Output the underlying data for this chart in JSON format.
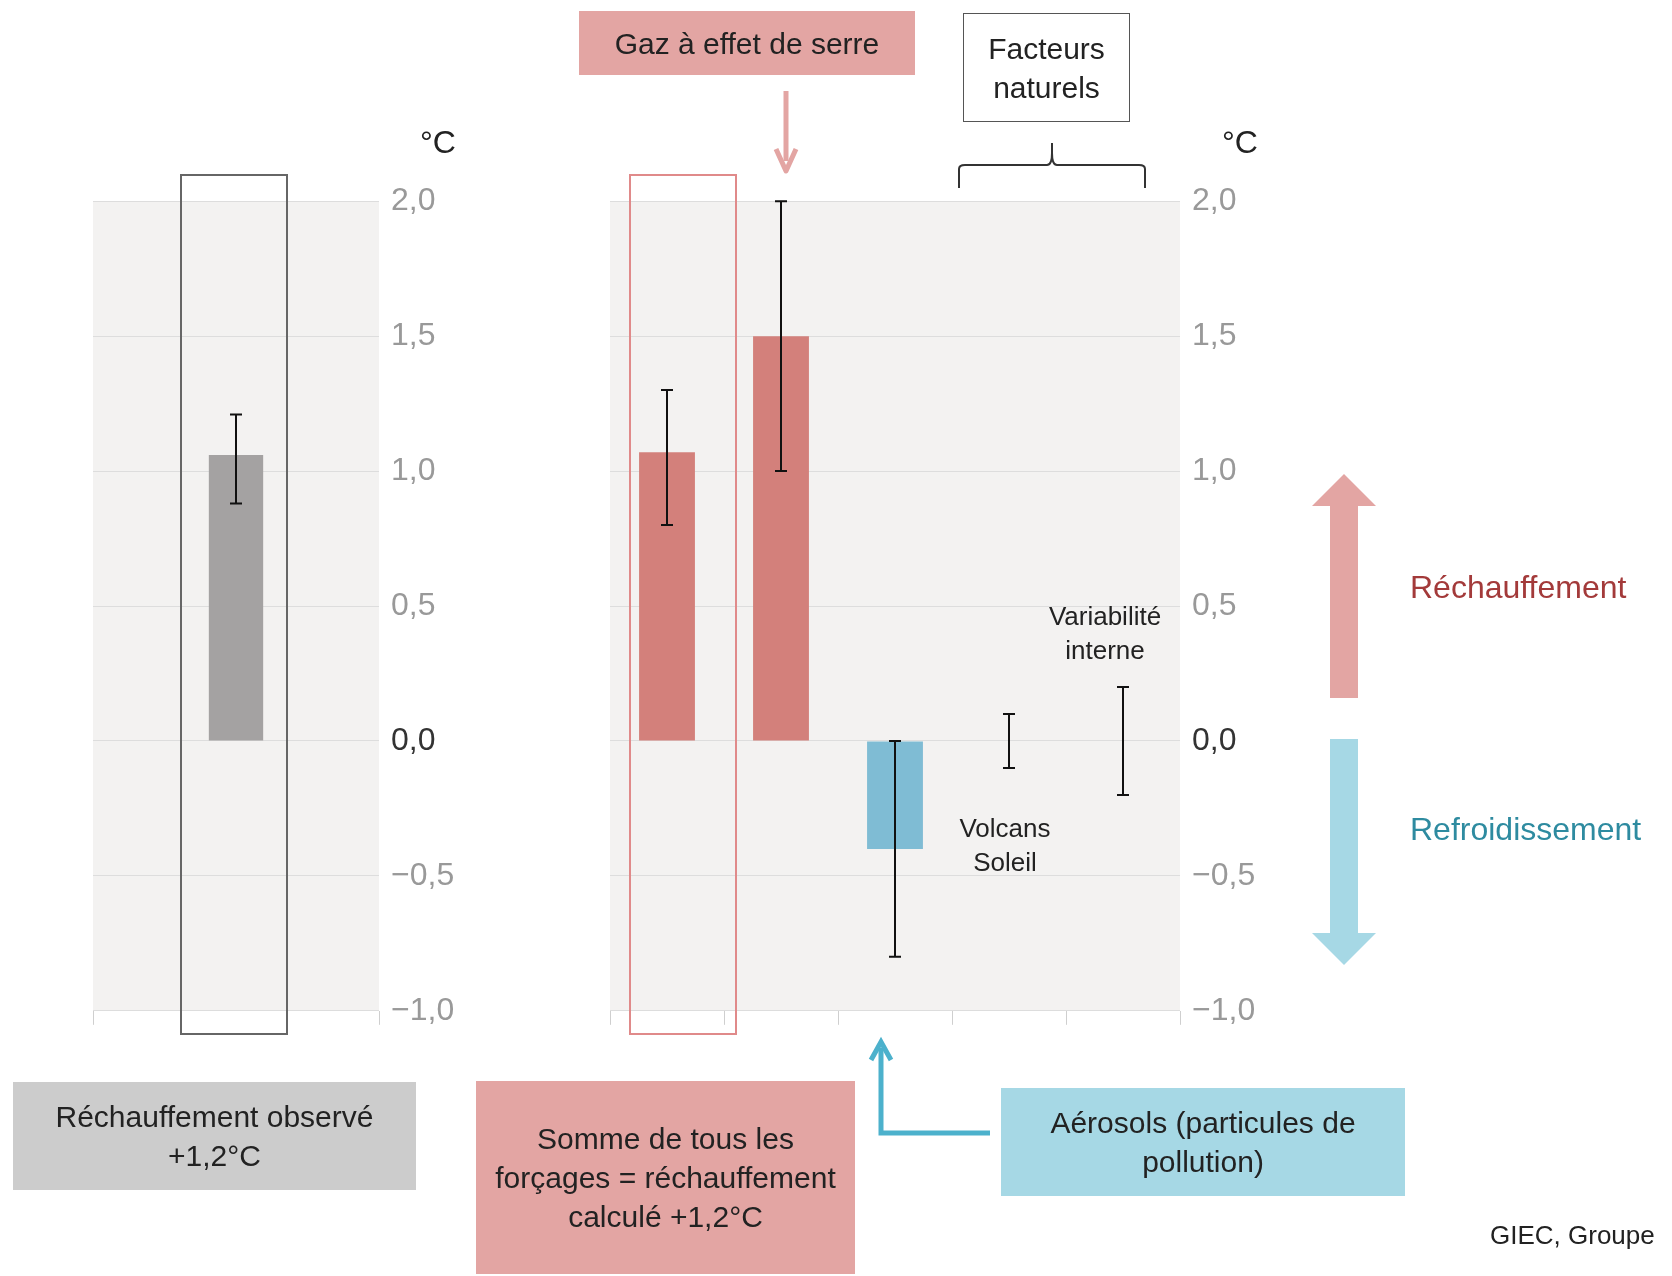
{
  "chart_data": [
    {
      "type": "bar",
      "categories": [
        null
      ],
      "values": [
        1.06
      ],
      "colors": [
        "#a4a2a2"
      ],
      "errors": [
        [
          0.88,
          1.21
        ]
      ],
      "ylim": [
        -1,
        2
      ],
      "yticks": [
        {
          "value": -1,
          "label": "−1,0"
        },
        {
          "value": -0.5,
          "label": "−0,5"
        },
        {
          "value": 0,
          "label": "0,0"
        },
        {
          "value": 0.5,
          "label": "0,5"
        },
        {
          "value": 1,
          "label": "1,0"
        },
        {
          "value": 1.5,
          "label": "1,5"
        },
        {
          "value": 2,
          "label": "2,0"
        }
      ],
      "ylabel": "°C",
      "grid": "y",
      "annotations": [
        "Réchauffement observé +1,2°C"
      ]
    },
    {
      "type": "bar",
      "categories": [
        null,
        null,
        null,
        null,
        null
      ],
      "values": [
        1.07,
        1.5,
        -0.4,
        0,
        0
      ],
      "colors": [
        "#d3807b",
        "#d3807b",
        "#7fbcd4",
        "#bdbdbd",
        "#bdbdbd"
      ],
      "errors": [
        [
          0.8,
          1.3
        ],
        [
          1.0,
          2.0
        ],
        [
          -0.8,
          0.0
        ],
        [
          -0.1,
          0.1
        ],
        [
          -0.2,
          0.2
        ]
      ],
      "ylim": [
        -1,
        2
      ],
      "yticks": [
        {
          "value": -1,
          "label": "−1,0"
        },
        {
          "value": -0.5,
          "label": "−0,5"
        },
        {
          "value": 0,
          "label": "0,0"
        },
        {
          "value": 0.5,
          "label": "0,5"
        },
        {
          "value": 1,
          "label": "1,0"
        },
        {
          "value": 1.5,
          "label": "1,5"
        },
        {
          "value": 2,
          "label": "2,0"
        }
      ],
      "ylabel": "°C",
      "grid": "y",
      "annotations": [
        "Gaz à effet de serre",
        "Facteurs naturels",
        "Variabilité interne",
        "Volcans Soleil",
        "Réchauffement",
        "Refroidissement",
        "Somme de tous les forçages = réchauffement calculé +1,2°C",
        "Aérosols (particules de pollution)",
        "GIEC, Groupe"
      ]
    }
  ]
}
